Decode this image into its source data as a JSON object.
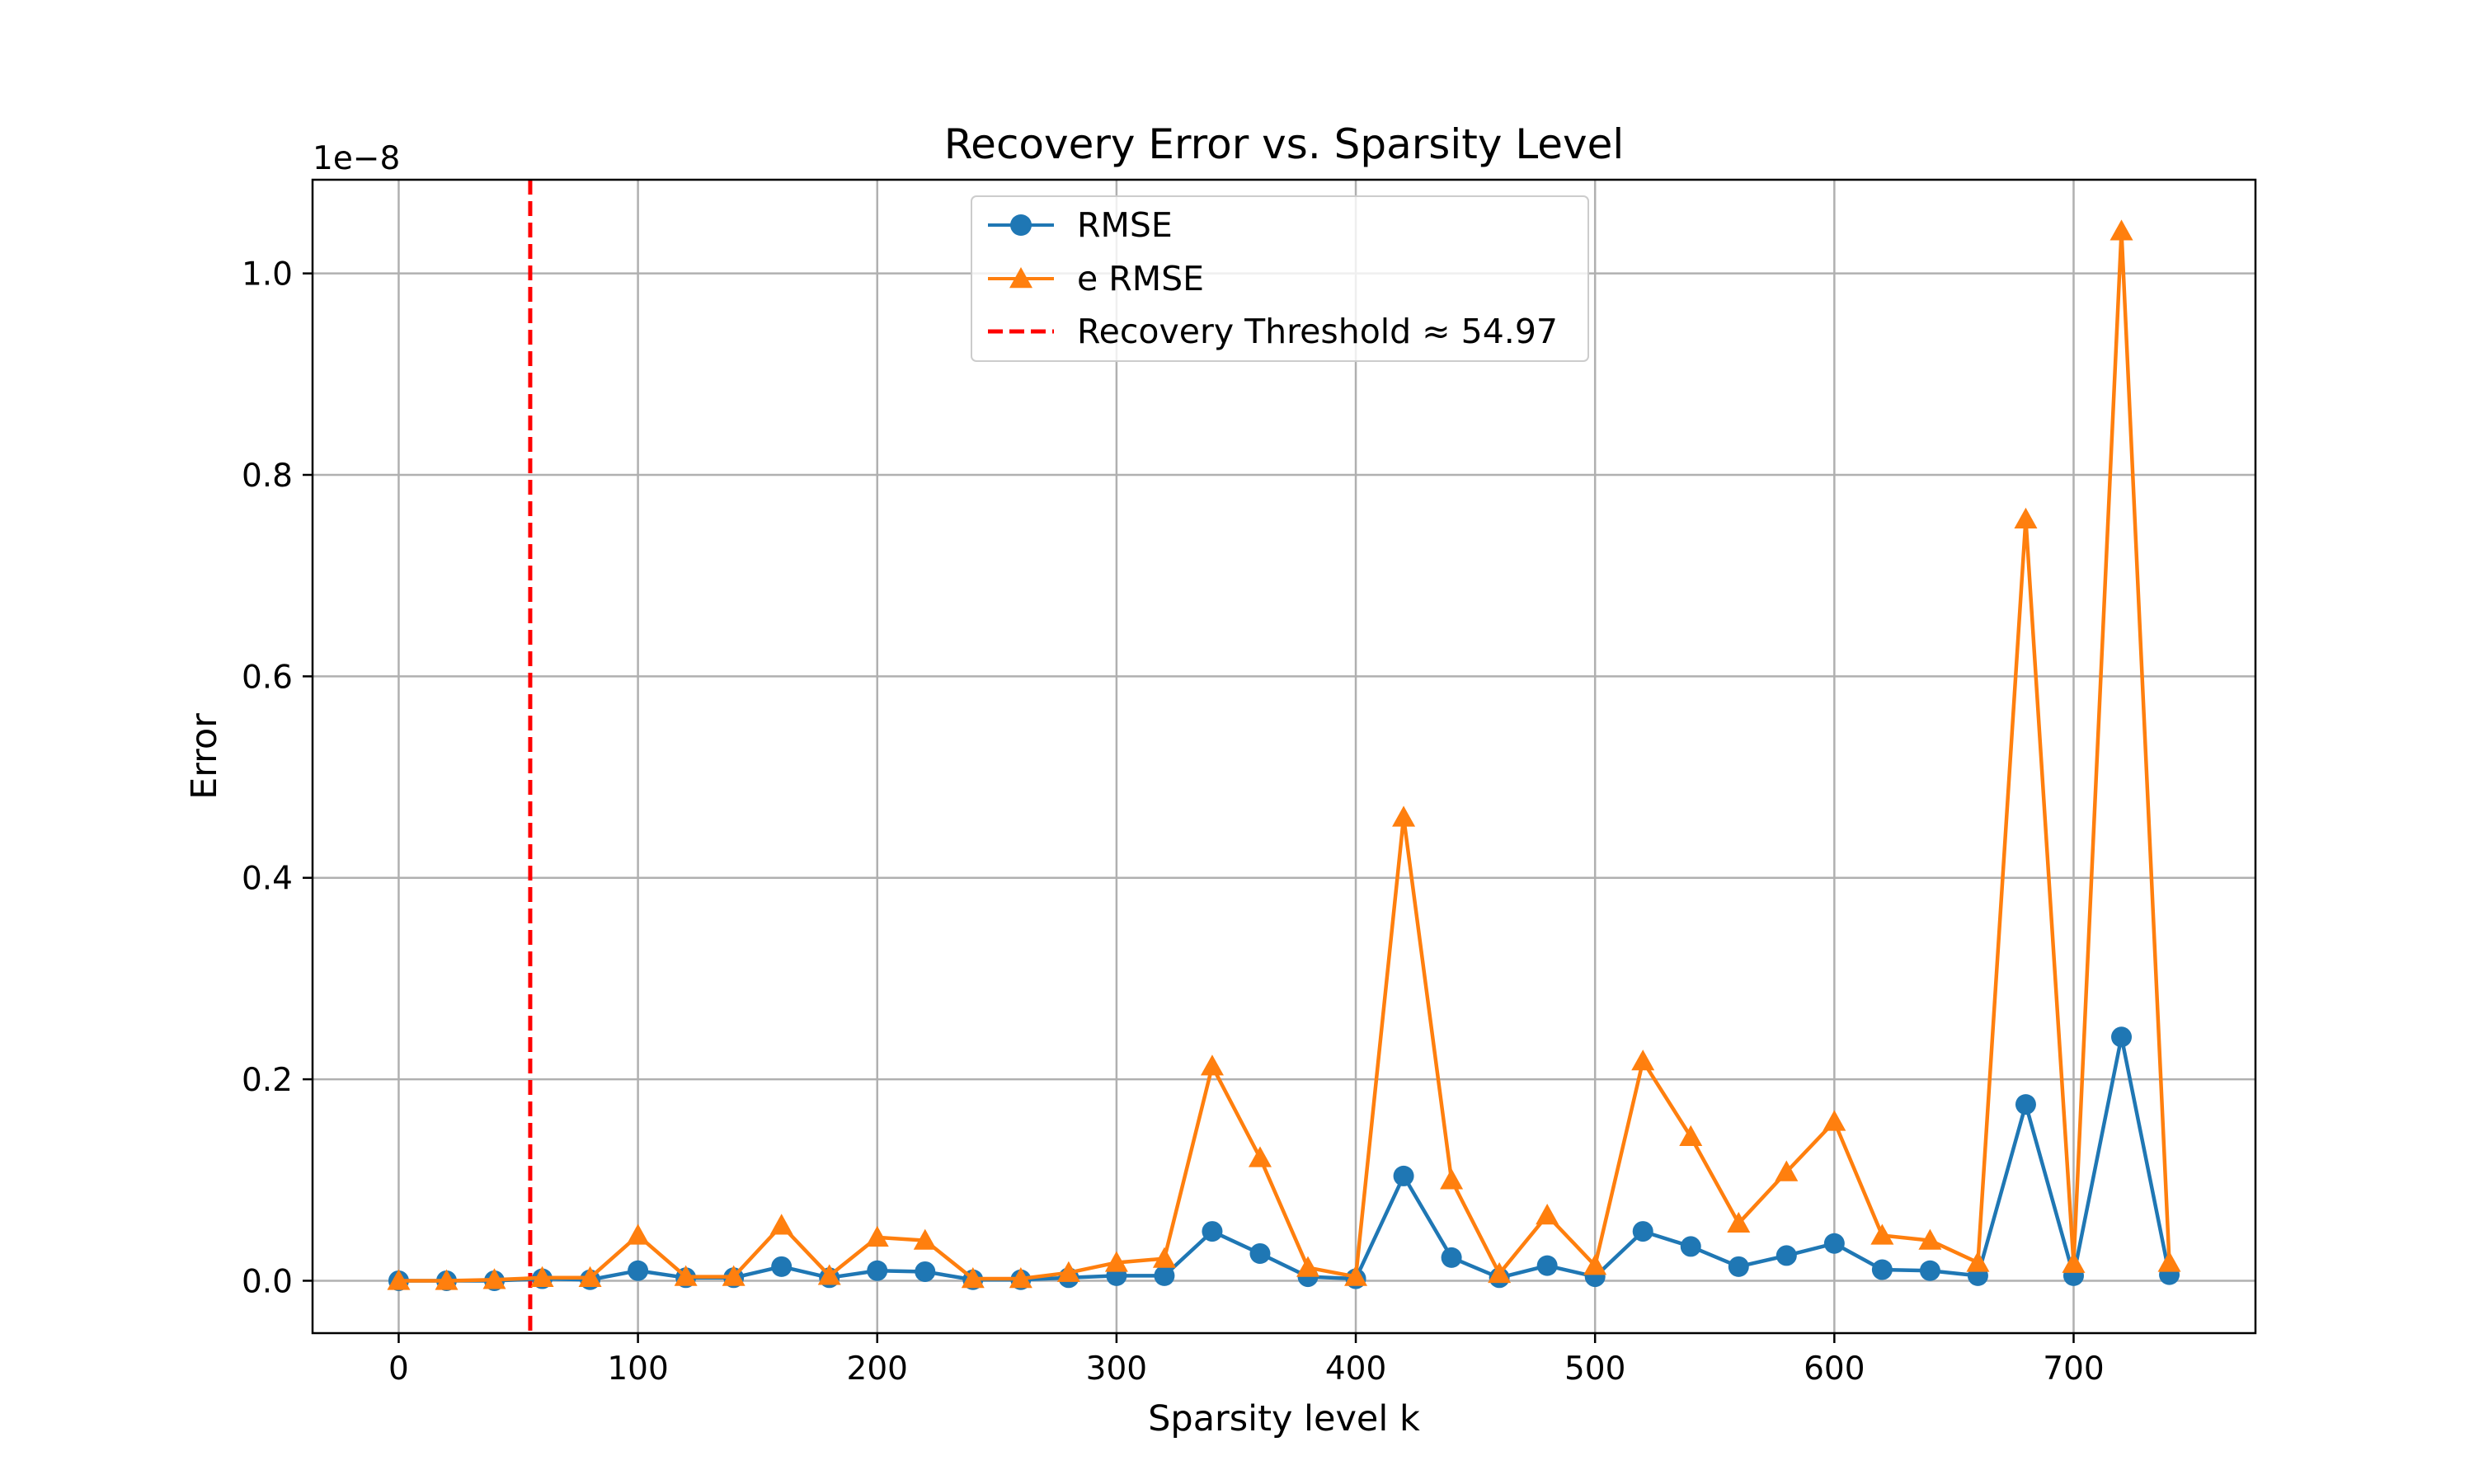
{
  "chart_data": {
    "type": "line",
    "title": "Recovery Error vs. Sparsity Level",
    "xlabel": "Sparsity level k",
    "ylabel": "Error",
    "y_offset_label": "1e−8",
    "y_scale_factor": 1e-08,
    "xlim": [
      -36,
      776
    ],
    "ylim": [
      -0.052,
      1.093
    ],
    "x_ticks": [
      0,
      100,
      200,
      300,
      400,
      500,
      600,
      700
    ],
    "y_ticks": [
      0.0,
      0.2,
      0.4,
      0.6,
      0.8,
      1.0
    ],
    "x_tick_labels": [
      "0",
      "100",
      "200",
      "300",
      "400",
      "500",
      "600",
      "700"
    ],
    "y_tick_labels": [
      "0.0",
      "0.2",
      "0.4",
      "0.6",
      "0.8",
      "1.0"
    ],
    "grid": true,
    "legend_position": "upper-center",
    "x": [
      0,
      20,
      40,
      60,
      80,
      100,
      120,
      140,
      160,
      180,
      200,
      220,
      240,
      260,
      280,
      300,
      320,
      340,
      360,
      380,
      400,
      420,
      440,
      460,
      480,
      500,
      520,
      540,
      560,
      580,
      600,
      620,
      640,
      660,
      680,
      700,
      720,
      740
    ],
    "series": [
      {
        "name": "RMSE",
        "color": "#1f77b4",
        "marker": "circle",
        "values": [
          0.0,
          0.0,
          0.0,
          0.002,
          0.001,
          0.01,
          0.003,
          0.003,
          0.014,
          0.003,
          0.01,
          0.009,
          0.001,
          0.001,
          0.003,
          0.005,
          0.005,
          0.049,
          0.027,
          0.004,
          0.002,
          0.104,
          0.023,
          0.003,
          0.015,
          0.004,
          0.049,
          0.034,
          0.014,
          0.025,
          0.037,
          0.011,
          0.01,
          0.005,
          0.175,
          0.005,
          0.242,
          0.006
        ]
      },
      {
        "name": "e RMSE",
        "color": "#ff7f0e",
        "marker": "triangle",
        "values": [
          0.0,
          0.0,
          0.001,
          0.003,
          0.003,
          0.045,
          0.004,
          0.004,
          0.055,
          0.005,
          0.043,
          0.04,
          0.002,
          0.002,
          0.008,
          0.018,
          0.022,
          0.213,
          0.122,
          0.013,
          0.004,
          0.46,
          0.1,
          0.007,
          0.065,
          0.015,
          0.218,
          0.143,
          0.057,
          0.108,
          0.158,
          0.045,
          0.04,
          0.018,
          0.756,
          0.017,
          1.042,
          0.018
        ]
      }
    ],
    "threshold": {
      "label": "Recovery Threshold ≈ 54.97",
      "x": 54.97,
      "color": "#ff0000",
      "style": "dashed"
    }
  }
}
